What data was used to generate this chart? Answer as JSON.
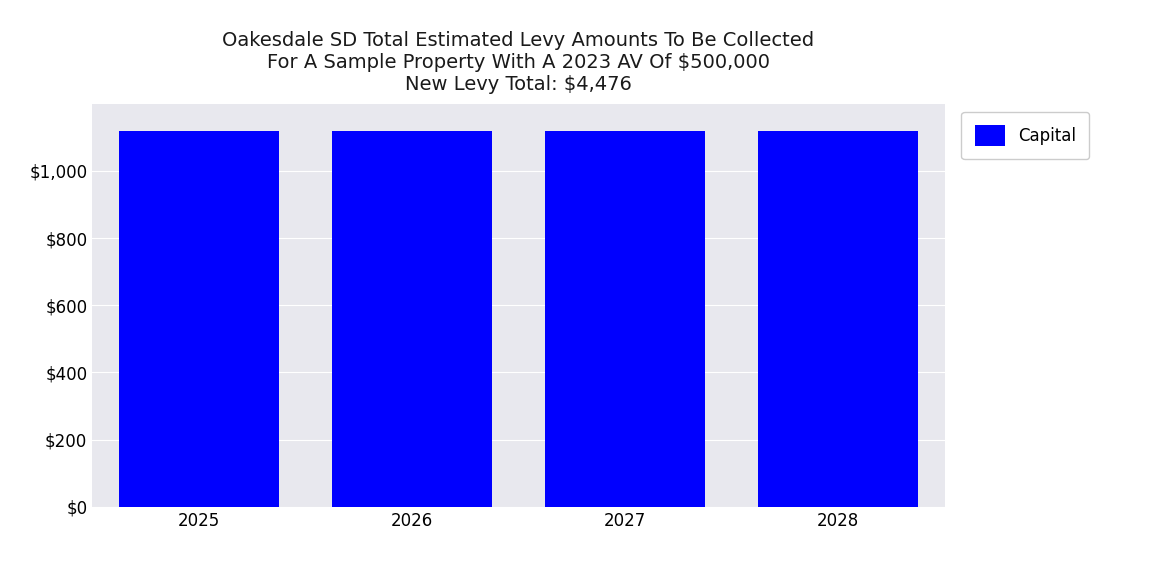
{
  "title_line1": "Oakesdale SD Total Estimated Levy Amounts To Be Collected",
  "title_line2": "For A Sample Property With A 2023 AV Of $500,000",
  "title_line3": "New Levy Total: $4,476",
  "categories": [
    2025,
    2026,
    2027,
    2028
  ],
  "capital_values": [
    1119,
    1119,
    1119,
    1119
  ],
  "bar_color": "#0000FF",
  "legend_label": "Capital",
  "ylim": [
    0,
    1200
  ],
  "yticks": [
    0,
    200,
    400,
    600,
    800,
    1000
  ],
  "plot_bg_color": "#E8E8EE",
  "figure_bg_color": "#FFFFFF",
  "title_fontsize": 14,
  "tick_fontsize": 12,
  "legend_fontsize": 12,
  "bar_width": 0.75
}
